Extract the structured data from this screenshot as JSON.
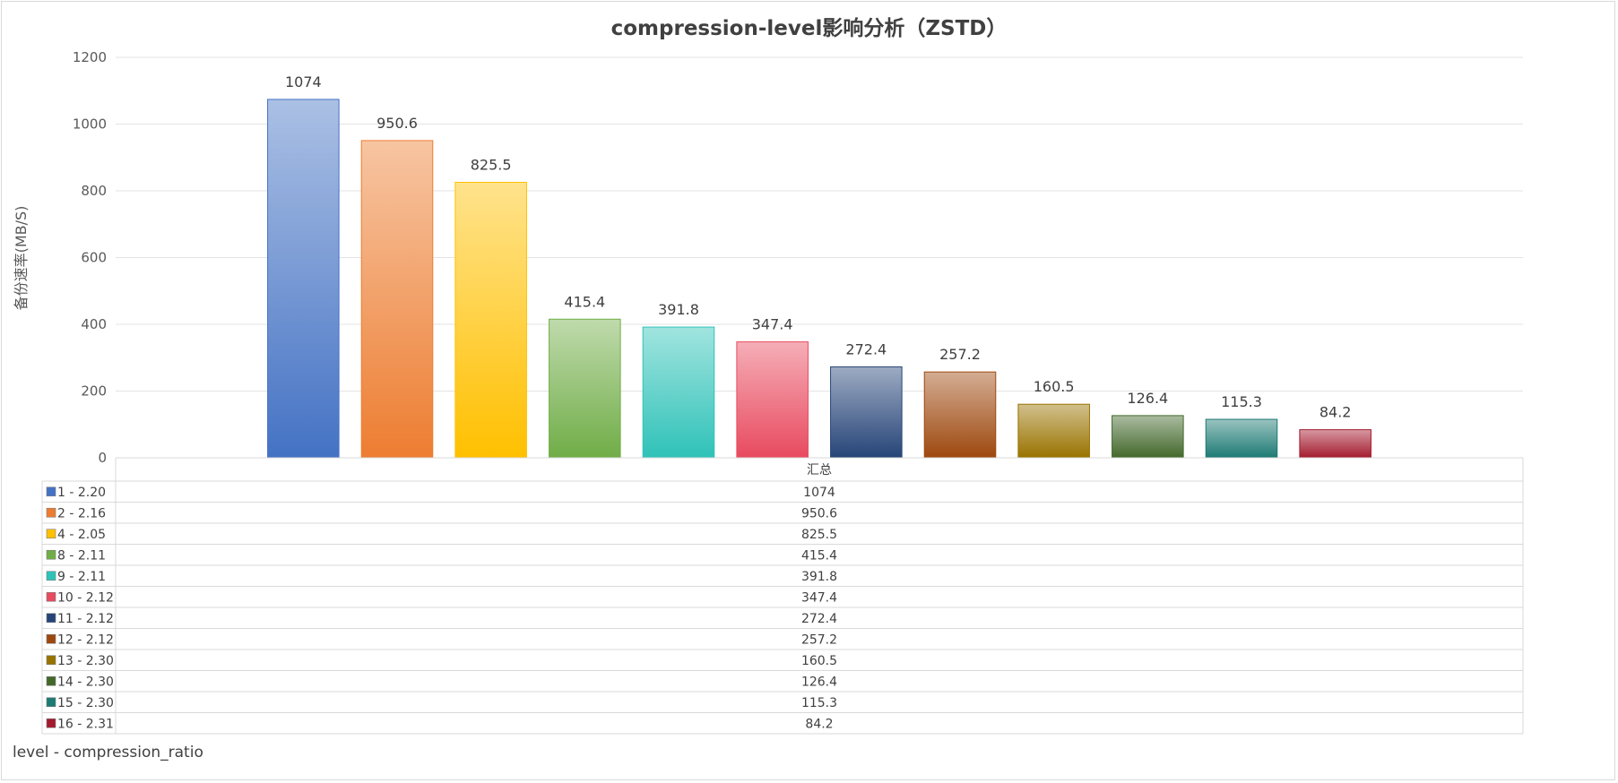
{
  "chart_data": {
    "type": "bar",
    "title": "compression-level影响分析（ZSTD）",
    "ylabel": "备份速率(MB/S)",
    "xlabel": "汇总",
    "ylim": [
      0,
      1200
    ],
    "yticks": [
      0,
      200,
      400,
      600,
      800,
      1000,
      1200
    ],
    "grid": true,
    "legend_position": "data-table",
    "legend_caption": "level - compression_ratio",
    "categories": [
      "汇总"
    ],
    "series": [
      {
        "name": "1 - 2.20",
        "values": [
          1074
        ],
        "label": "1074",
        "color": "#4472c4"
      },
      {
        "name": "2 - 2.16",
        "values": [
          950.6
        ],
        "label": "950.6",
        "color": "#ed7d31"
      },
      {
        "name": "4 - 2.05",
        "values": [
          825.5
        ],
        "label": "825.5",
        "color": "#ffc000"
      },
      {
        "name": "8 - 2.11",
        "values": [
          415.4
        ],
        "label": "415.4",
        "color": "#70ad47"
      },
      {
        "name": "9 - 2.11",
        "values": [
          391.8
        ],
        "label": "391.8",
        "color": "#2fc2b8"
      },
      {
        "name": "10 - 2.12",
        "values": [
          347.4
        ],
        "label": "347.4",
        "color": "#e84a5f"
      },
      {
        "name": "11 - 2.12",
        "values": [
          272.4
        ],
        "label": "272.4",
        "color": "#264478"
      },
      {
        "name": "12 - 2.12",
        "values": [
          257.2
        ],
        "label": "257.2",
        "color": "#9e480e"
      },
      {
        "name": "13 - 2.30",
        "values": [
          160.5
        ],
        "label": "160.5",
        "color": "#997300"
      },
      {
        "name": "14 - 2.30",
        "values": [
          126.4
        ],
        "label": "126.4",
        "color": "#43682b"
      },
      {
        "name": "15 - 2.30",
        "values": [
          115.3
        ],
        "label": "115.3",
        "color": "#1d7a74"
      },
      {
        "name": "16 - 2.31",
        "values": [
          84.2
        ],
        "label": "84.2",
        "color": "#a31b2e"
      }
    ]
  }
}
